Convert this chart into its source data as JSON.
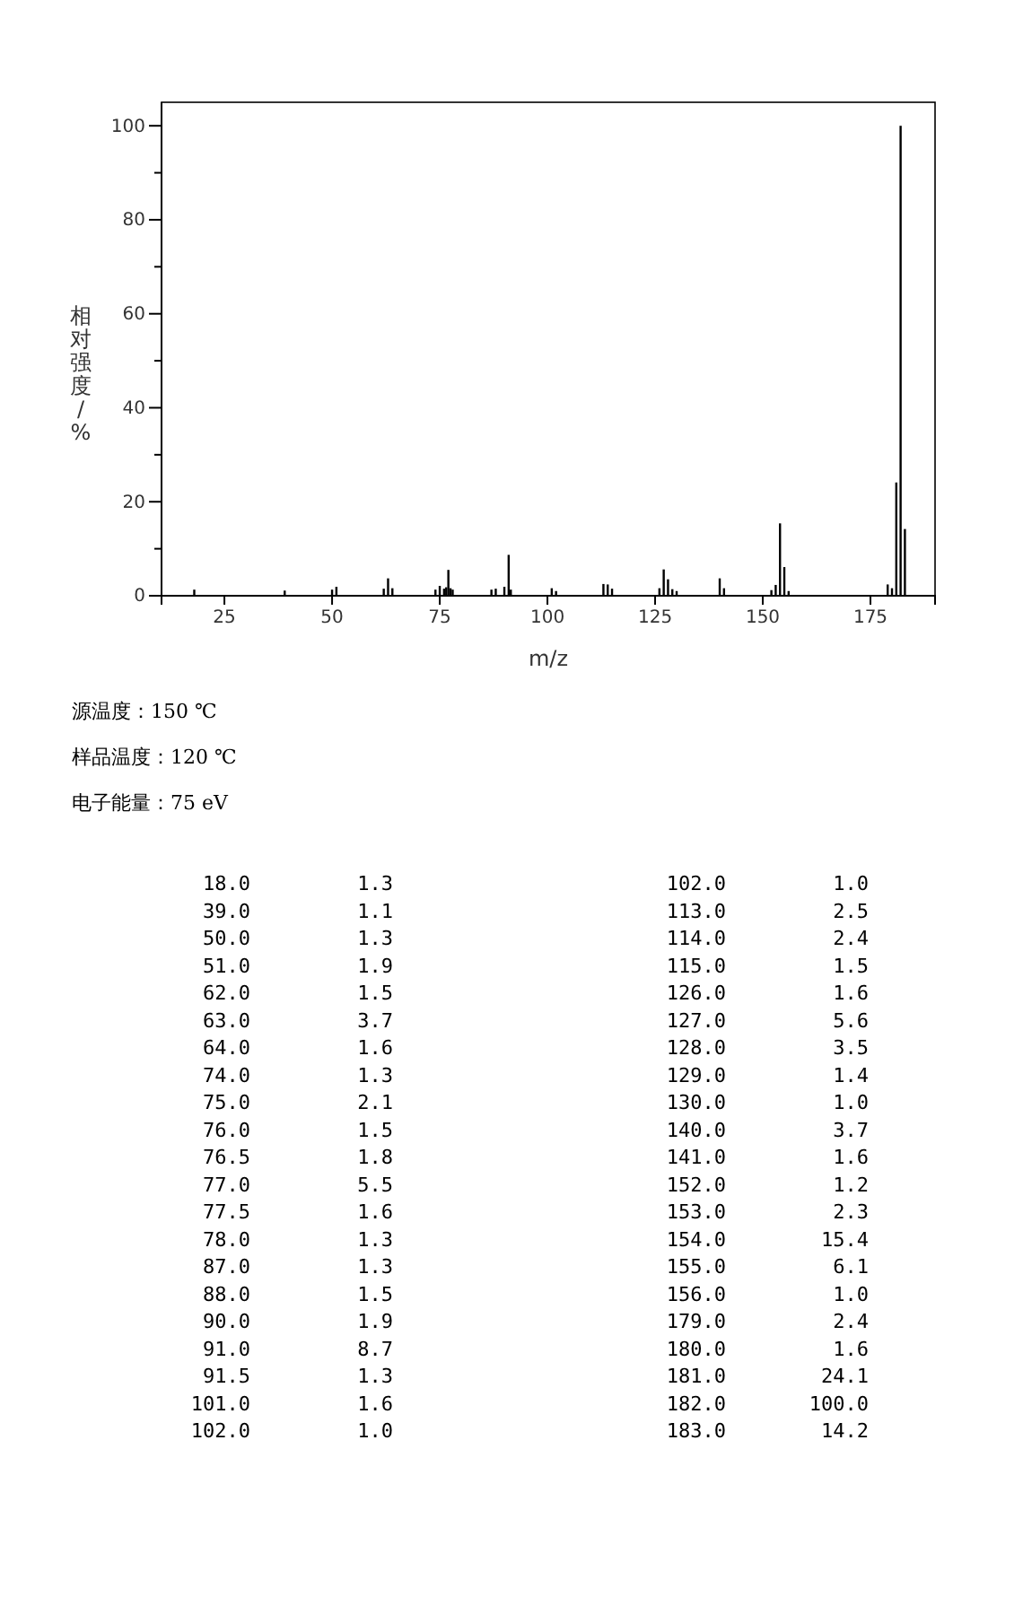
{
  "chart_data": [
    {
      "type": "bar",
      "xlabel": "m/z",
      "ylabel": "相对强度/%",
      "x": [
        18.0,
        39.0,
        50.0,
        51.0,
        62.0,
        63.0,
        64.0,
        74.0,
        75.0,
        76.0,
        76.5,
        77.0,
        77.5,
        78.0,
        87.0,
        88.0,
        90.0,
        91.0,
        91.5,
        101.0,
        102.0,
        113.0,
        114.0,
        115.0,
        126.0,
        127.0,
        128.0,
        129.0,
        130.0,
        140.0,
        141.0,
        152.0,
        153.0,
        154.0,
        155.0,
        156.0,
        179.0,
        180.0,
        181.0,
        182.0,
        183.0
      ],
      "values": [
        1.3,
        1.1,
        1.3,
        1.9,
        1.5,
        3.7,
        1.6,
        1.3,
        2.1,
        1.5,
        1.8,
        5.5,
        1.6,
        1.3,
        1.3,
        1.5,
        1.9,
        8.7,
        1.3,
        1.6,
        1.0,
        2.5,
        2.4,
        1.5,
        1.6,
        5.6,
        3.5,
        1.4,
        1.0,
        3.7,
        1.6,
        1.2,
        2.3,
        15.4,
        6.1,
        1.0,
        2.4,
        1.6,
        24.1,
        100.0,
        14.2
      ],
      "color": "#000000",
      "xlim": [
        10.4,
        190
      ],
      "xticks": [
        25,
        50,
        75,
        100,
        125,
        150,
        175
      ],
      "ylim": [
        0,
        105
      ],
      "yticks": [
        0,
        {
          "value": 10,
          "label": null
        },
        20,
        {
          "value": 30,
          "label": null
        },
        40,
        {
          "value": 50,
          "label": null
        },
        60,
        {
          "value": 70,
          "label": null
        },
        80,
        {
          "value": 90,
          "label": null
        },
        100
      ],
      "annotations": [
        "源温度：150 ℃",
        "样品温度：120 ℃",
        "电子能量：75 eV"
      ]
    },
    {
      "type": "other",
      "annotations": [
        "18.0         1.3",
        "39.0         1.1",
        "50.0         1.3",
        "51.0         1.9",
        "62.0         1.5",
        "63.0         3.7",
        "64.0         1.6",
        "74.0         1.3",
        "75.0         2.1",
        "76.0         1.5",
        "76.5         1.8",
        "77.0         5.5",
        "77.5         1.6",
        "78.0         1.3",
        "87.0         1.3",
        "88.0         1.5",
        "90.0         1.9",
        "91.0         8.7",
        "91.5         1.3",
        "101.0         1.6",
        "102.0         1.0",
        "102.0         1.0",
        "113.0         2.5",
        "114.0         2.4",
        "115.0         1.5",
        "126.0         1.6",
        "127.0         5.6",
        "128.0         3.5",
        "129.0         1.4",
        "130.0         1.0",
        "140.0         3.7",
        "141.0         1.6",
        "152.0         1.2",
        "153.0         2.3",
        "154.0        15.4",
        "155.0         6.1",
        "156.0         1.0",
        "179.0         2.4",
        "180.0         1.6",
        "181.0        24.1",
        "182.0       100.0",
        "183.0        14.2"
      ]
    }
  ]
}
